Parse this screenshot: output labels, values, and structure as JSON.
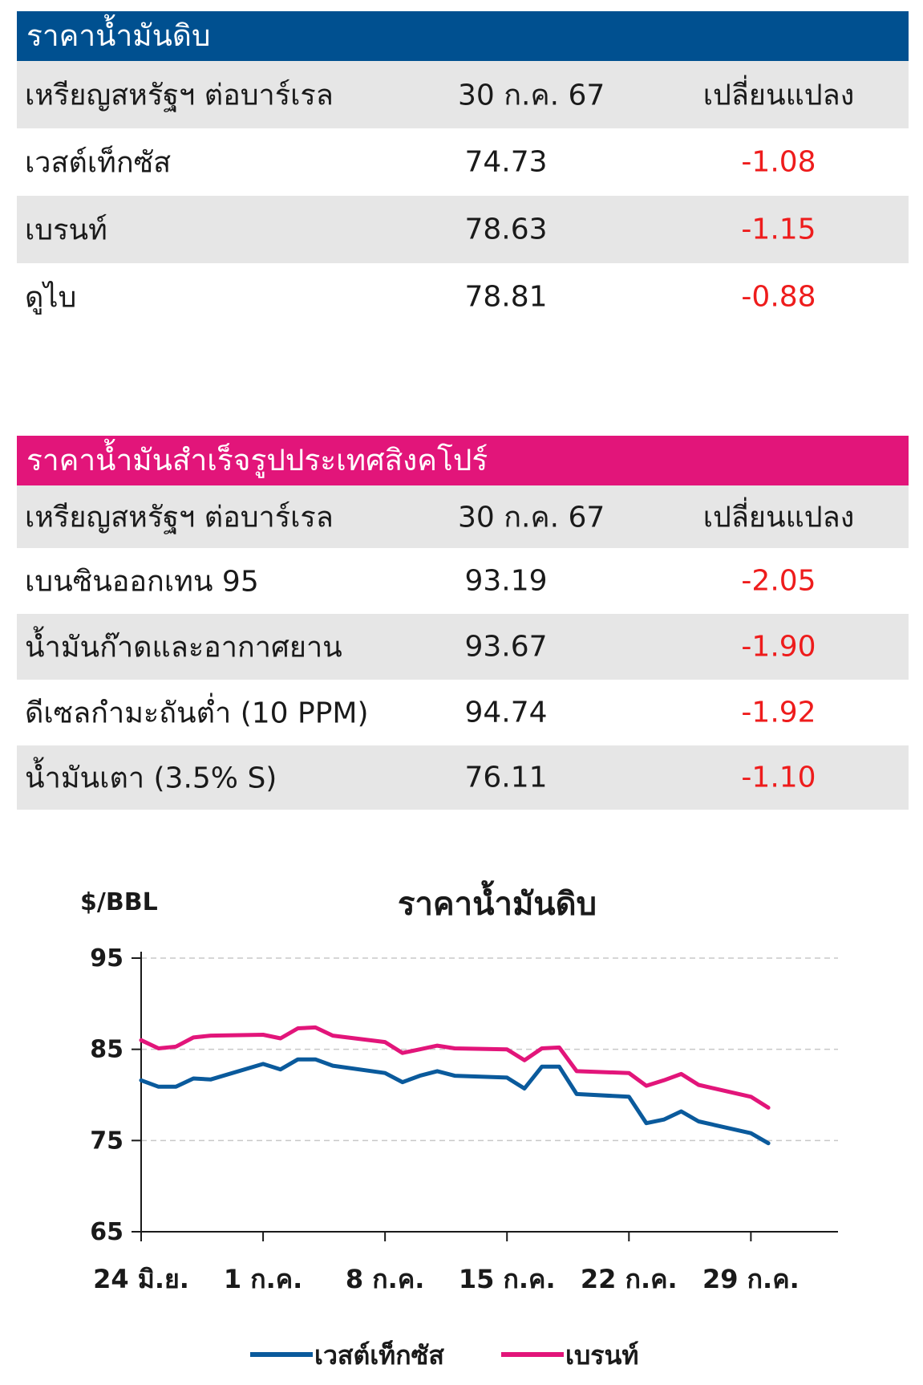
{
  "crude": {
    "title": "ราคาน้ำมันดิบ",
    "header": {
      "unit": "เหรียญสหรัฐฯ ต่อบาร์เรล",
      "date": "30 ก.ค. 67",
      "change": "เปลี่ยนแปลง"
    },
    "rows": [
      {
        "name": "เวสต์เท็กซัส",
        "price": "74.73",
        "change": "-1.08"
      },
      {
        "name": "เบรนท์",
        "price": "78.63",
        "change": "-1.15"
      },
      {
        "name": "ดูไบ",
        "price": "78.81",
        "change": "-0.88"
      }
    ]
  },
  "refined": {
    "title": "ราคาน้ำมันสำเร็จรูปประเทศสิงคโปร์",
    "header": {
      "unit": "เหรียญสหรัฐฯ ต่อบาร์เรล",
      "date": "30 ก.ค. 67",
      "change": "เปลี่ยนแปลง"
    },
    "rows": [
      {
        "name": "เบนซินออกเทน 95",
        "price": "93.19",
        "change": "-2.05"
      },
      {
        "name": "น้ำมันก๊าดและอากาศยาน",
        "price": "93.67",
        "change": "-1.90"
      },
      {
        "name": "ดีเซลกำมะถันต่ำ (10 PPM)",
        "price": "94.74",
        "change": "-1.92"
      },
      {
        "name": "น้ำมันเตา (3.5% S)",
        "price": "76.11",
        "change": "-1.10"
      }
    ]
  },
  "colors": {
    "crude_header": "#005090",
    "refined_header": "#e2157a",
    "negative": "#ee1c1c",
    "wti": "#0a5a9c",
    "brent": "#e2157a"
  },
  "chart_data": {
    "type": "line",
    "title": "ราคาน้ำมันดิบ",
    "ylabel": "$/BBL",
    "ylim": [
      65,
      95
    ],
    "yticks": [
      95,
      85,
      75,
      65
    ],
    "xlabels": [
      "24 มิ.ย.",
      "1 ก.ค.",
      "8 ก.ค.",
      "15 ก.ค.",
      "22 ก.ค.",
      "29 ก.ค."
    ],
    "xlabel_positions": [
      0,
      7,
      14,
      21,
      28,
      35
    ],
    "x": [
      0,
      1,
      2,
      3,
      4,
      7,
      8,
      9,
      10,
      11,
      14,
      15,
      16,
      17,
      18,
      21,
      22,
      23,
      24,
      25,
      28,
      29,
      30,
      31,
      32,
      35,
      36
    ],
    "series": [
      {
        "name": "เวสต์เท็กซัส",
        "color": "#0a5a9c",
        "values": [
          81.6,
          80.9,
          80.9,
          81.8,
          81.7,
          83.4,
          82.8,
          83.9,
          83.9,
          83.2,
          82.4,
          81.4,
          82.1,
          82.6,
          82.1,
          81.9,
          80.7,
          83.1,
          83.1,
          80.1,
          79.8,
          76.9,
          77.3,
          78.2,
          77.1,
          75.8,
          74.7
        ]
      },
      {
        "name": "เบรนท์",
        "color": "#e2157a",
        "values": [
          86.0,
          85.1,
          85.3,
          86.3,
          86.5,
          86.6,
          86.2,
          87.3,
          87.4,
          86.5,
          85.8,
          84.6,
          85.0,
          85.4,
          85.1,
          85.0,
          83.8,
          85.1,
          85.2,
          82.6,
          82.4,
          81.0,
          81.6,
          82.3,
          81.1,
          79.8,
          78.6
        ]
      }
    ],
    "grid": "horizontal dashed",
    "legend": "bottom"
  }
}
